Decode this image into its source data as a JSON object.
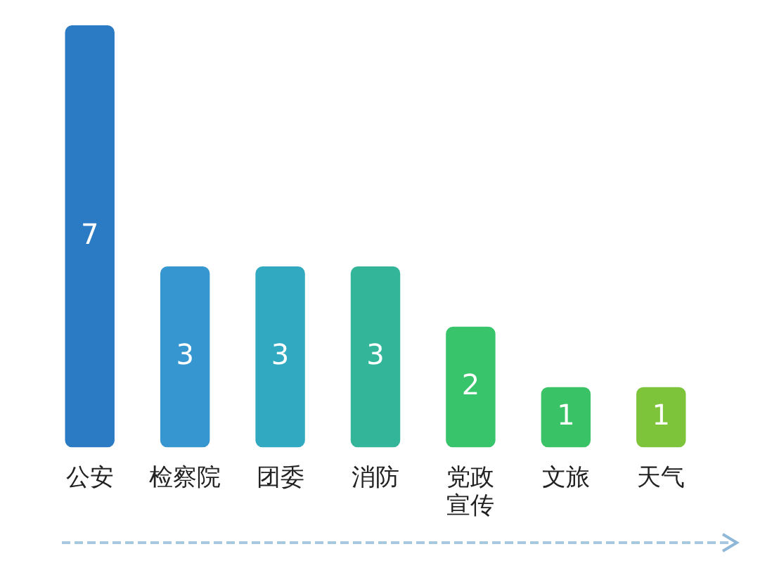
{
  "chart_data": {
    "type": "bar",
    "categories": [
      "公安",
      "检察院",
      "团委",
      "消防",
      "党政宣传",
      "文旅",
      "天气"
    ],
    "values": [
      7,
      3,
      3,
      3,
      2,
      1,
      1
    ],
    "colors": [
      "#2a7bc4",
      "#3596d0",
      "#30a9c1",
      "#33b59a",
      "#37c46a",
      "#3ac266",
      "#7dc43a"
    ],
    "data_labels": true,
    "grid": false,
    "legend": false
  }
}
